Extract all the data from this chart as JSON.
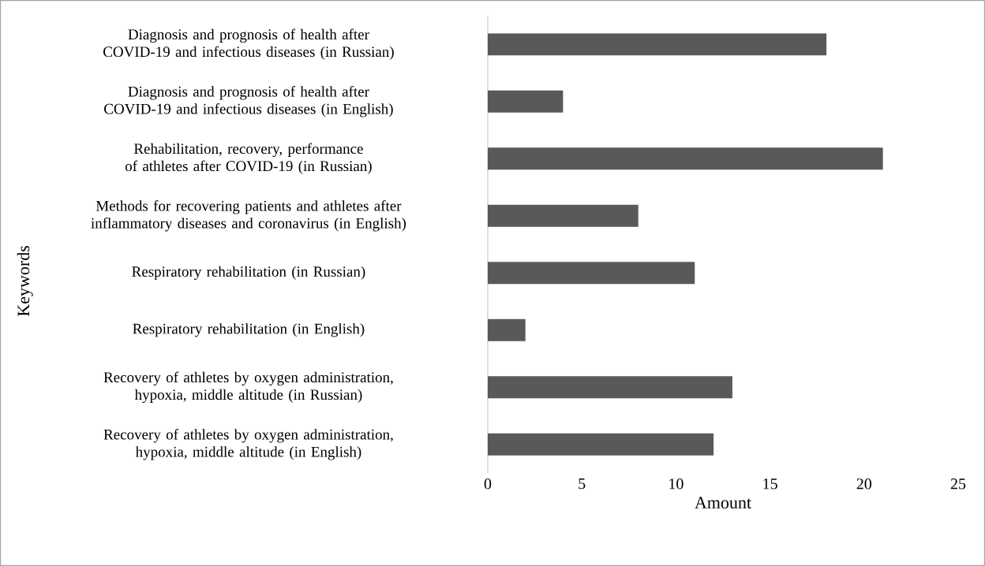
{
  "chart_data": {
    "type": "bar",
    "orientation": "horizontal",
    "ylabel": "Keywords",
    "xlabel": "Amount",
    "categories": [
      "Diagnosis and prognosis of health after COVID-19 and infectious diseases (in Russian)",
      "Diagnosis and prognosis of health after COVID-19 and infectious diseases (in English)",
      "Rehabilitation, recovery, performance of athletes after COVID-19 (in Russian)",
      "Methods for recovering patients and athletes after inflammatory diseases and coronavirus (in English)",
      "Respiratory rehabilitation (in Russian)",
      "Respiratory rehabilitation (in English)",
      "Recovery of athletes by oxygen administration, hypoxia, middle altitude (in Russian)",
      "Recovery of athletes by oxygen administration, hypoxia, middle altitude (in English)"
    ],
    "values": [
      18,
      4,
      21,
      8,
      11,
      2,
      13,
      12
    ],
    "color": "#595959",
    "xlim": [
      0,
      25
    ],
    "xticks": [
      0,
      5,
      10,
      15,
      20,
      25
    ],
    "grid": false
  }
}
